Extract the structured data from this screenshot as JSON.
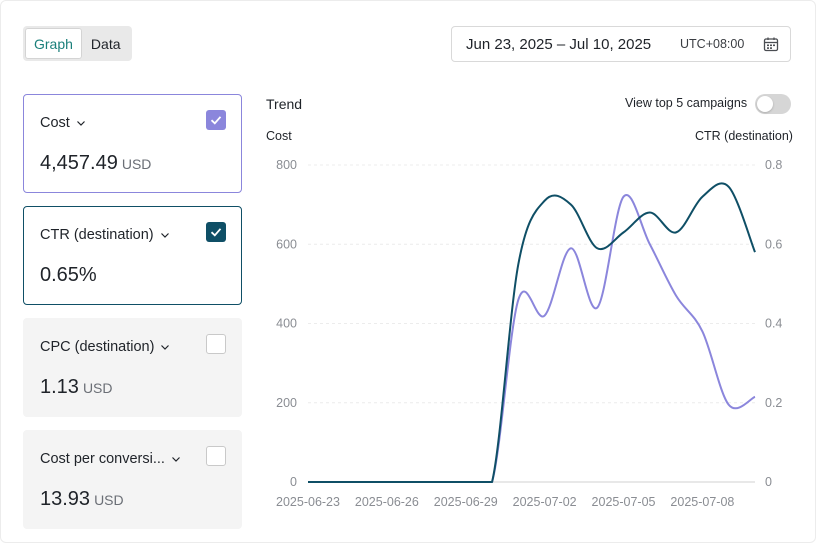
{
  "view_toggle": {
    "graph": "Graph",
    "data": "Data"
  },
  "date_picker": {
    "range": "Jun 23, 2025 – Jul 10, 2025",
    "timezone": "UTC+08:00"
  },
  "metrics": [
    {
      "title": "Cost",
      "value": "4,457.49",
      "unit": "USD",
      "checked": true,
      "color": "#8b86dc"
    },
    {
      "title": "CTR (destination)",
      "value": "0.65%",
      "unit": "",
      "checked": true,
      "color": "#0f4f66"
    },
    {
      "title": "CPC (destination)",
      "value": "1.13",
      "unit": "USD",
      "checked": false
    },
    {
      "title": "Cost per conversi...",
      "value": "13.93",
      "unit": "USD",
      "checked": false
    }
  ],
  "chart_header": {
    "title": "Trend",
    "toggle_label": "View top 5 campaigns",
    "left_axis_label": "Cost",
    "right_axis_label": "CTR (destination)"
  },
  "chart_data": {
    "type": "line",
    "x": [
      "2025-06-23",
      "2025-06-24",
      "2025-06-25",
      "2025-06-26",
      "2025-06-27",
      "2025-06-28",
      "2025-06-29",
      "2025-06-30",
      "2025-07-01",
      "2025-07-02",
      "2025-07-03",
      "2025-07-04",
      "2025-07-05",
      "2025-07-06",
      "2025-07-07",
      "2025-07-08",
      "2025-07-09",
      "2025-07-10"
    ],
    "x_tick_labels": [
      "2025-06-23",
      "2025-06-26",
      "2025-06-29",
      "2025-07-02",
      "2025-07-05",
      "2025-07-08"
    ],
    "y_left": {
      "label": "Cost",
      "ticks": [
        0,
        200,
        400,
        600,
        800
      ],
      "range": [
        0,
        800
      ]
    },
    "y_right": {
      "label": "CTR (destination)",
      "ticks": [
        0,
        0.2,
        0.4,
        0.6,
        0.8
      ],
      "range": [
        0,
        0.8
      ]
    },
    "series": [
      {
        "name": "Cost",
        "axis": "left",
        "color": "#8b86dc",
        "values": [
          0,
          0,
          0,
          0,
          0,
          0,
          0,
          0,
          460,
          420,
          590,
          440,
          720,
          600,
          470,
          380,
          195,
          215
        ]
      },
      {
        "name": "CTR (destination)",
        "axis": "right",
        "color": "#0f4f66",
        "values": [
          0,
          0,
          0,
          0,
          0,
          0,
          0,
          0,
          0.55,
          0.71,
          0.7,
          0.59,
          0.63,
          0.68,
          0.63,
          0.72,
          0.745,
          0.58
        ]
      }
    ],
    "grid": true,
    "legend": "none"
  }
}
